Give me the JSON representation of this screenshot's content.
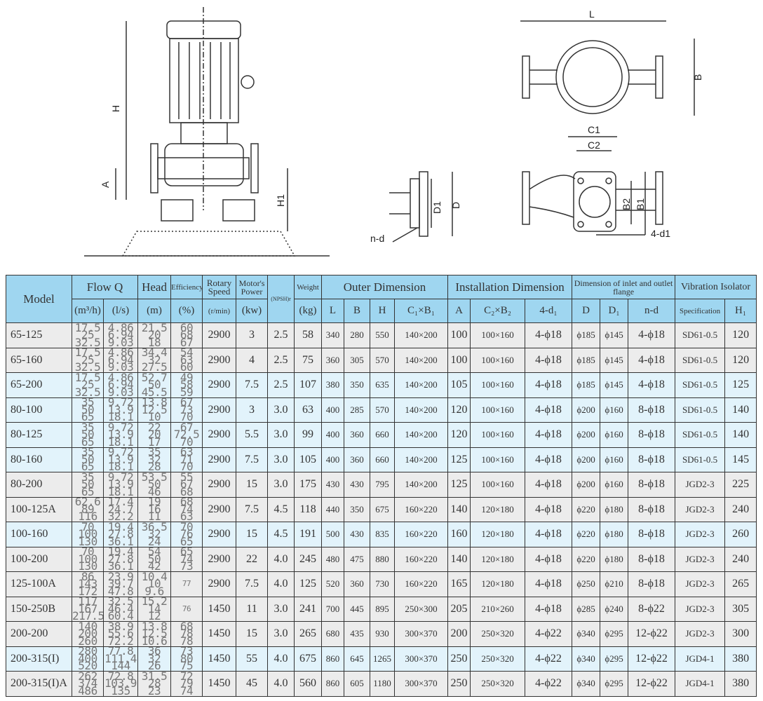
{
  "drawing_labels": {
    "H": "H",
    "A": "A",
    "H1": "H1",
    "L": "L",
    "B": "B",
    "C1": "C1",
    "C2": "C2",
    "D1": "D1",
    "D": "D",
    "nd": "n-d",
    "B2": "B2",
    "B1": "B1",
    "d1": "4-d1"
  },
  "header": {
    "model": "Model",
    "flow": "Flow Q",
    "flow_m3h": "(m³/h)",
    "flow_ls": "(l/s)",
    "head": "Head",
    "head_unit": "(m)",
    "efficiency": "Efficiency",
    "eff_unit": "(%)",
    "rotary": "Rotary Speed",
    "rotary_unit": "(r/min)",
    "motor": "Motor's Power",
    "motor_unit": "(kw)",
    "npsh": "(NPSH)r",
    "weight": "Weight",
    "weight_unit": "(kg)",
    "outer": "Outer Dimension",
    "install": "Installation Dimension",
    "flange": "Dimension of inlet and outlet flange",
    "isolator": "Vibration Isolator",
    "sub": [
      "L",
      "B",
      "H",
      "C₁×B₁",
      "A",
      "C₂×B₂",
      "4-d₁",
      "D",
      "D₁",
      "n-d",
      "Specification",
      "H₁"
    ]
  },
  "rows": [
    {
      "model": "65-125",
      "q1": "17.5\n25\n32.5",
      "q2": "4.86\n6.94\n9.03",
      "head": "21.5\n20\n18",
      "eff": "60\n68\n67",
      "speed": "2900",
      "power": "3",
      "npsh": "2.5",
      "weight": "58",
      "L": "340",
      "B": "280",
      "H": "550",
      "C1B1": "140×200",
      "A": "100",
      "C2B2": "100×160",
      "d1": "4-ϕ18",
      "D": "ϕ185",
      "D1": "ϕ145",
      "nd": "4-ϕ18",
      "spec": "SD61-0.5",
      "H1": "120",
      "shade": "gray"
    },
    {
      "model": "65-160",
      "q1": "17.5\n25\n32.5",
      "q2": "4.86\n6.94\n9.03",
      "head": "34.4\n32\n27.5",
      "eff": "54\n63\n60",
      "speed": "2900",
      "power": "4",
      "npsh": "2.5",
      "weight": "75",
      "L": "360",
      "B": "305",
      "H": "570",
      "C1B1": "140×200",
      "A": "100",
      "C2B2": "100×160",
      "d1": "4-ϕ18",
      "D": "ϕ185",
      "D1": "ϕ145",
      "nd": "4-ϕ18",
      "spec": "SD61-0.5",
      "H1": "120",
      "shade": "gray"
    },
    {
      "model": "65-200",
      "q1": "17.5\n25\n32.5",
      "q2": "4.86\n6.94\n9.03",
      "head": "52.7\n50\n45.5",
      "eff": "49\n58\n59",
      "speed": "2900",
      "power": "7.5",
      "npsh": "2.5",
      "weight": "107",
      "L": "380",
      "B": "350",
      "H": "635",
      "C1B1": "140×200",
      "A": "105",
      "C2B2": "100×160",
      "d1": "4-ϕ18",
      "D": "ϕ185",
      "D1": "ϕ145",
      "nd": "4-ϕ18",
      "spec": "SD61-0.5",
      "H1": "125",
      "shade": "blue"
    },
    {
      "model": "80-100",
      "q1": "35\n50\n65",
      "q2": "9.72\n13.9\n18.1",
      "head": "13.8\n12.5\n10",
      "eff": "67\n73\n70",
      "speed": "2900",
      "power": "3",
      "npsh": "3.0",
      "weight": "63",
      "L": "400",
      "B": "285",
      "H": "570",
      "C1B1": "140×200",
      "A": "120",
      "C2B2": "100×160",
      "d1": "4-ϕ18",
      "D": "ϕ200",
      "D1": "ϕ160",
      "nd": "8-ϕ18",
      "spec": "SD61-0.5",
      "H1": "140",
      "shade": "blue"
    },
    {
      "model": "80-125",
      "q1": "35\n50\n65",
      "q2": "9.72\n13.9\n18.1",
      "head": "22\n20\n17",
      "eff": "67\n72.5\n70",
      "speed": "2900",
      "power": "5.5",
      "npsh": "3.0",
      "weight": "99",
      "L": "400",
      "B": "360",
      "H": "660",
      "C1B1": "140×200",
      "A": "120",
      "C2B2": "100×160",
      "d1": "4-ϕ18",
      "D": "ϕ200",
      "D1": "ϕ160",
      "nd": "8-ϕ18",
      "spec": "SD61-0.5",
      "H1": "140",
      "shade": "blue"
    },
    {
      "model": "80-160",
      "q1": "35\n50\n65",
      "q2": "9.72\n13.9\n18.1",
      "head": "35\n32\n28",
      "eff": "63\n71\n70",
      "speed": "2900",
      "power": "7.5",
      "npsh": "3.0",
      "weight": "105",
      "L": "400",
      "B": "360",
      "H": "660",
      "C1B1": "140×200",
      "A": "125",
      "C2B2": "100×160",
      "d1": "4-ϕ18",
      "D": "ϕ200",
      "D1": "ϕ160",
      "nd": "8-ϕ18",
      "spec": "SD61-0.5",
      "H1": "145",
      "shade": "blue"
    },
    {
      "model": "80-200",
      "q1": "35\n50\n65",
      "q2": "9.72\n13.9\n18.1",
      "head": "53.5\n50\n46",
      "eff": "55\n67\n68",
      "speed": "2900",
      "power": "15",
      "npsh": "3.0",
      "weight": "175",
      "L": "430",
      "B": "430",
      "H": "795",
      "C1B1": "140×200",
      "A": "125",
      "C2B2": "100×160",
      "d1": "4-ϕ18",
      "D": "ϕ200",
      "D1": "ϕ160",
      "nd": "8-ϕ18",
      "spec": "JGD2-3",
      "H1": "225",
      "shade": "gray"
    },
    {
      "model": "100-125A",
      "q1": "62.6\n89\n116",
      "q2": "17.4\n24.7\n32.2",
      "head": "19\n16\n11",
      "eff": "68\n74\n63",
      "speed": "2900",
      "power": "7.5",
      "npsh": "4.5",
      "weight": "118",
      "L": "440",
      "B": "350",
      "H": "675",
      "C1B1": "160×220",
      "A": "140",
      "C2B2": "120×180",
      "d1": "4-ϕ18",
      "D": "ϕ220",
      "D1": "ϕ180",
      "nd": "8-ϕ18",
      "spec": "JGD2-3",
      "H1": "240",
      "shade": "gray"
    },
    {
      "model": "100-160",
      "q1": "70\n100\n130",
      "q2": "19.4\n27.8\n36.1",
      "head": "36.5\n32\n24",
      "eff": "70\n76\n65",
      "speed": "2900",
      "power": "15",
      "npsh": "4.5",
      "weight": "191",
      "L": "500",
      "B": "430",
      "H": "835",
      "C1B1": "160×220",
      "A": "160",
      "C2B2": "120×180",
      "d1": "4-ϕ18",
      "D": "ϕ220",
      "D1": "ϕ180",
      "nd": "8-ϕ18",
      "spec": "JGD2-3",
      "H1": "260",
      "shade": "blue"
    },
    {
      "model": "100-200",
      "q1": "70\n100\n130",
      "q2": "19.4\n27.8\n36.1",
      "head": "54\n50\n42",
      "eff": "65\n74\n73",
      "speed": "2900",
      "power": "22",
      "npsh": "4.0",
      "weight": "245",
      "L": "480",
      "B": "475",
      "H": "880",
      "C1B1": "160×220",
      "A": "140",
      "C2B2": "120×180",
      "d1": "4-ϕ18",
      "D": "ϕ220",
      "D1": "ϕ180",
      "nd": "8-ϕ18",
      "spec": "JGD2-3",
      "H1": "240",
      "shade": "gray"
    },
    {
      "model": "125-100A",
      "q1": "86\n143\n172",
      "q2": "23.9\n39.7\n47.8",
      "head": "10.4\n10\n9.6",
      "eff": "77",
      "speed": "2900",
      "power": "7.5",
      "npsh": "4.0",
      "weight": "125",
      "L": "520",
      "B": "360",
      "H": "730",
      "C1B1": "160×220",
      "A": "165",
      "C2B2": "120×180",
      "d1": "4-ϕ18",
      "D": "ϕ250",
      "D1": "ϕ210",
      "nd": "8-ϕ18",
      "spec": "JGD2-3",
      "H1": "265",
      "shade": "gray"
    },
    {
      "model": "150-250B",
      "q1": "117\n167\n217.5",
      "q2": "32.5\n46.4\n60.4",
      "head": "15.2\n14\n12",
      "eff": "76",
      "speed": "1450",
      "power": "11",
      "npsh": "3.0",
      "weight": "241",
      "L": "700",
      "B": "445",
      "H": "895",
      "C1B1": "250×300",
      "A": "205",
      "C2B2": "210×260",
      "d1": "4-ϕ18",
      "D": "ϕ285",
      "D1": "ϕ240",
      "nd": "8-ϕ22",
      "spec": "JGD2-3",
      "H1": "305",
      "shade": "gray"
    },
    {
      "model": "200-200",
      "q1": "140\n200\n260",
      "q2": "38.9\n55.6\n72.2",
      "head": "13.8\n12.5\n10.6",
      "eff": "68\n78\n78",
      "speed": "1450",
      "power": "15",
      "npsh": "3.0",
      "weight": "265",
      "L": "680",
      "B": "435",
      "H": "930",
      "C1B1": "300×370",
      "A": "200",
      "C2B2": "250×320",
      "d1": "4-ϕ22",
      "D": "ϕ340",
      "D1": "ϕ295",
      "nd": "12-ϕ22",
      "spec": "JGD2-3",
      "H1": "300",
      "shade": "gray"
    },
    {
      "model": "200-315(I)",
      "q1": "280\n400\n520",
      "q2": "77.8\n111.4\n144",
      "head": "36\n32\n26",
      "eff": "73\n80\n75",
      "speed": "1450",
      "power": "55",
      "npsh": "4.0",
      "weight": "675",
      "L": "860",
      "B": "645",
      "H": "1265",
      "C1B1": "300×370",
      "A": "250",
      "C2B2": "250×320",
      "d1": "4-ϕ22",
      "D": "ϕ340",
      "D1": "ϕ295",
      "nd": "12-ϕ22",
      "spec": "JGD4-1",
      "H1": "380",
      "shade": "blue"
    },
    {
      "model": "200-315(I)A",
      "q1": "262\n374\n486",
      "q2": "72.8\n103.9\n135",
      "head": "31.5\n28\n23",
      "eff": "72\n79\n74",
      "speed": "1450",
      "power": "45",
      "npsh": "4.0",
      "weight": "560",
      "L": "860",
      "B": "605",
      "H": "1180",
      "C1B1": "300×370",
      "A": "250",
      "C2B2": "250×320",
      "d1": "4-ϕ22",
      "D": "ϕ340",
      "D1": "ϕ295",
      "nd": "12-ϕ22",
      "spec": "JGD4-1",
      "H1": "380",
      "shade": "gray"
    }
  ],
  "colors": {
    "header": "#9fd6f0",
    "row_gray": "#ececec",
    "row_blue": "#e2f3fb"
  }
}
